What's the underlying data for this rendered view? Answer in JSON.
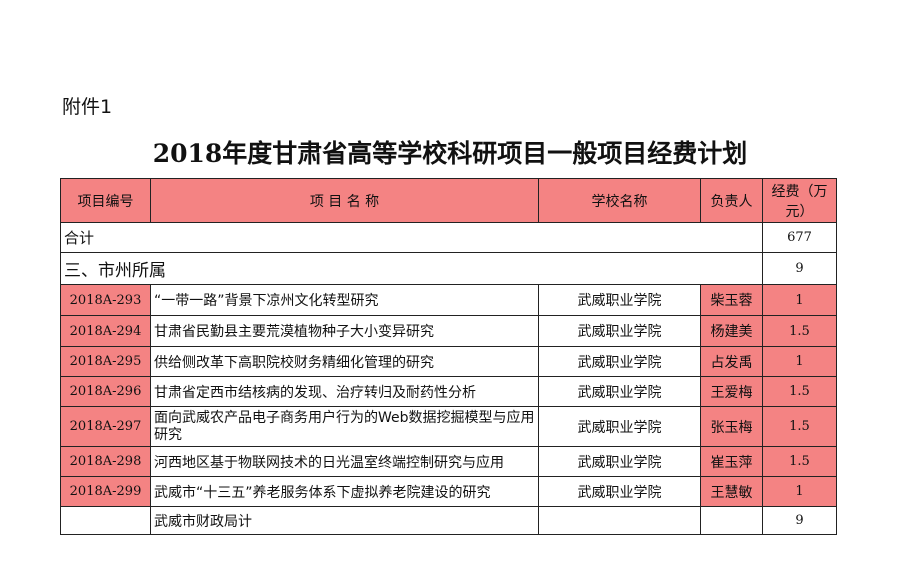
{
  "attachment_label": "附件1",
  "title": "2018年度甘肃省高等学校科研项目一般项目经费计划",
  "headers": {
    "id": "项目编号",
    "name": "项 目 名 称",
    "school": "学校名称",
    "person": "负责人",
    "funds": "经费（万元）"
  },
  "total": {
    "label": "合计",
    "value": "677"
  },
  "section": {
    "label": "三、市州所属",
    "value": "9"
  },
  "rows": [
    {
      "id": "2018A-293",
      "name": "“一带一路”背景下凉州文化转型研究",
      "school": "武威职业学院",
      "person": "柴玉蓉",
      "funds": "1"
    },
    {
      "id": "2018A-294",
      "name": "甘肃省民勤县主要荒漠植物种子大小变异研究",
      "school": "武威职业学院",
      "person": "杨建美",
      "funds": "1.5"
    },
    {
      "id": "2018A-295",
      "name": "供给侧改革下高职院校财务精细化管理的研究",
      "school": "武威职业学院",
      "person": "占发禹",
      "funds": "1"
    },
    {
      "id": "2018A-296",
      "name": "甘肃省定西市结核病的发现、治疗转归及耐药性分析",
      "school": "武威职业学院",
      "person": "王爱梅",
      "funds": "1.5"
    },
    {
      "id": "2018A-297",
      "name": "面向武威农产品电子商务用户行为的Web数据挖掘模型与应用研究",
      "school": "武威职业学院",
      "person": "张玉梅",
      "funds": "1.5"
    },
    {
      "id": "2018A-298",
      "name": "河西地区基于物联网技术的日光温室终端控制研究与应用",
      "school": "武威职业学院",
      "person": "崔玉萍",
      "funds": "1.5"
    },
    {
      "id": "2018A-299",
      "name": "武威市“十三五”养老服务体系下虚拟养老院建设的研究",
      "school": "武威职业学院",
      "person": "王慧敏",
      "funds": "1"
    }
  ],
  "subtotal": {
    "label": "武威市财政局计",
    "value": "9"
  },
  "colors": {
    "highlight": "#f48383"
  }
}
